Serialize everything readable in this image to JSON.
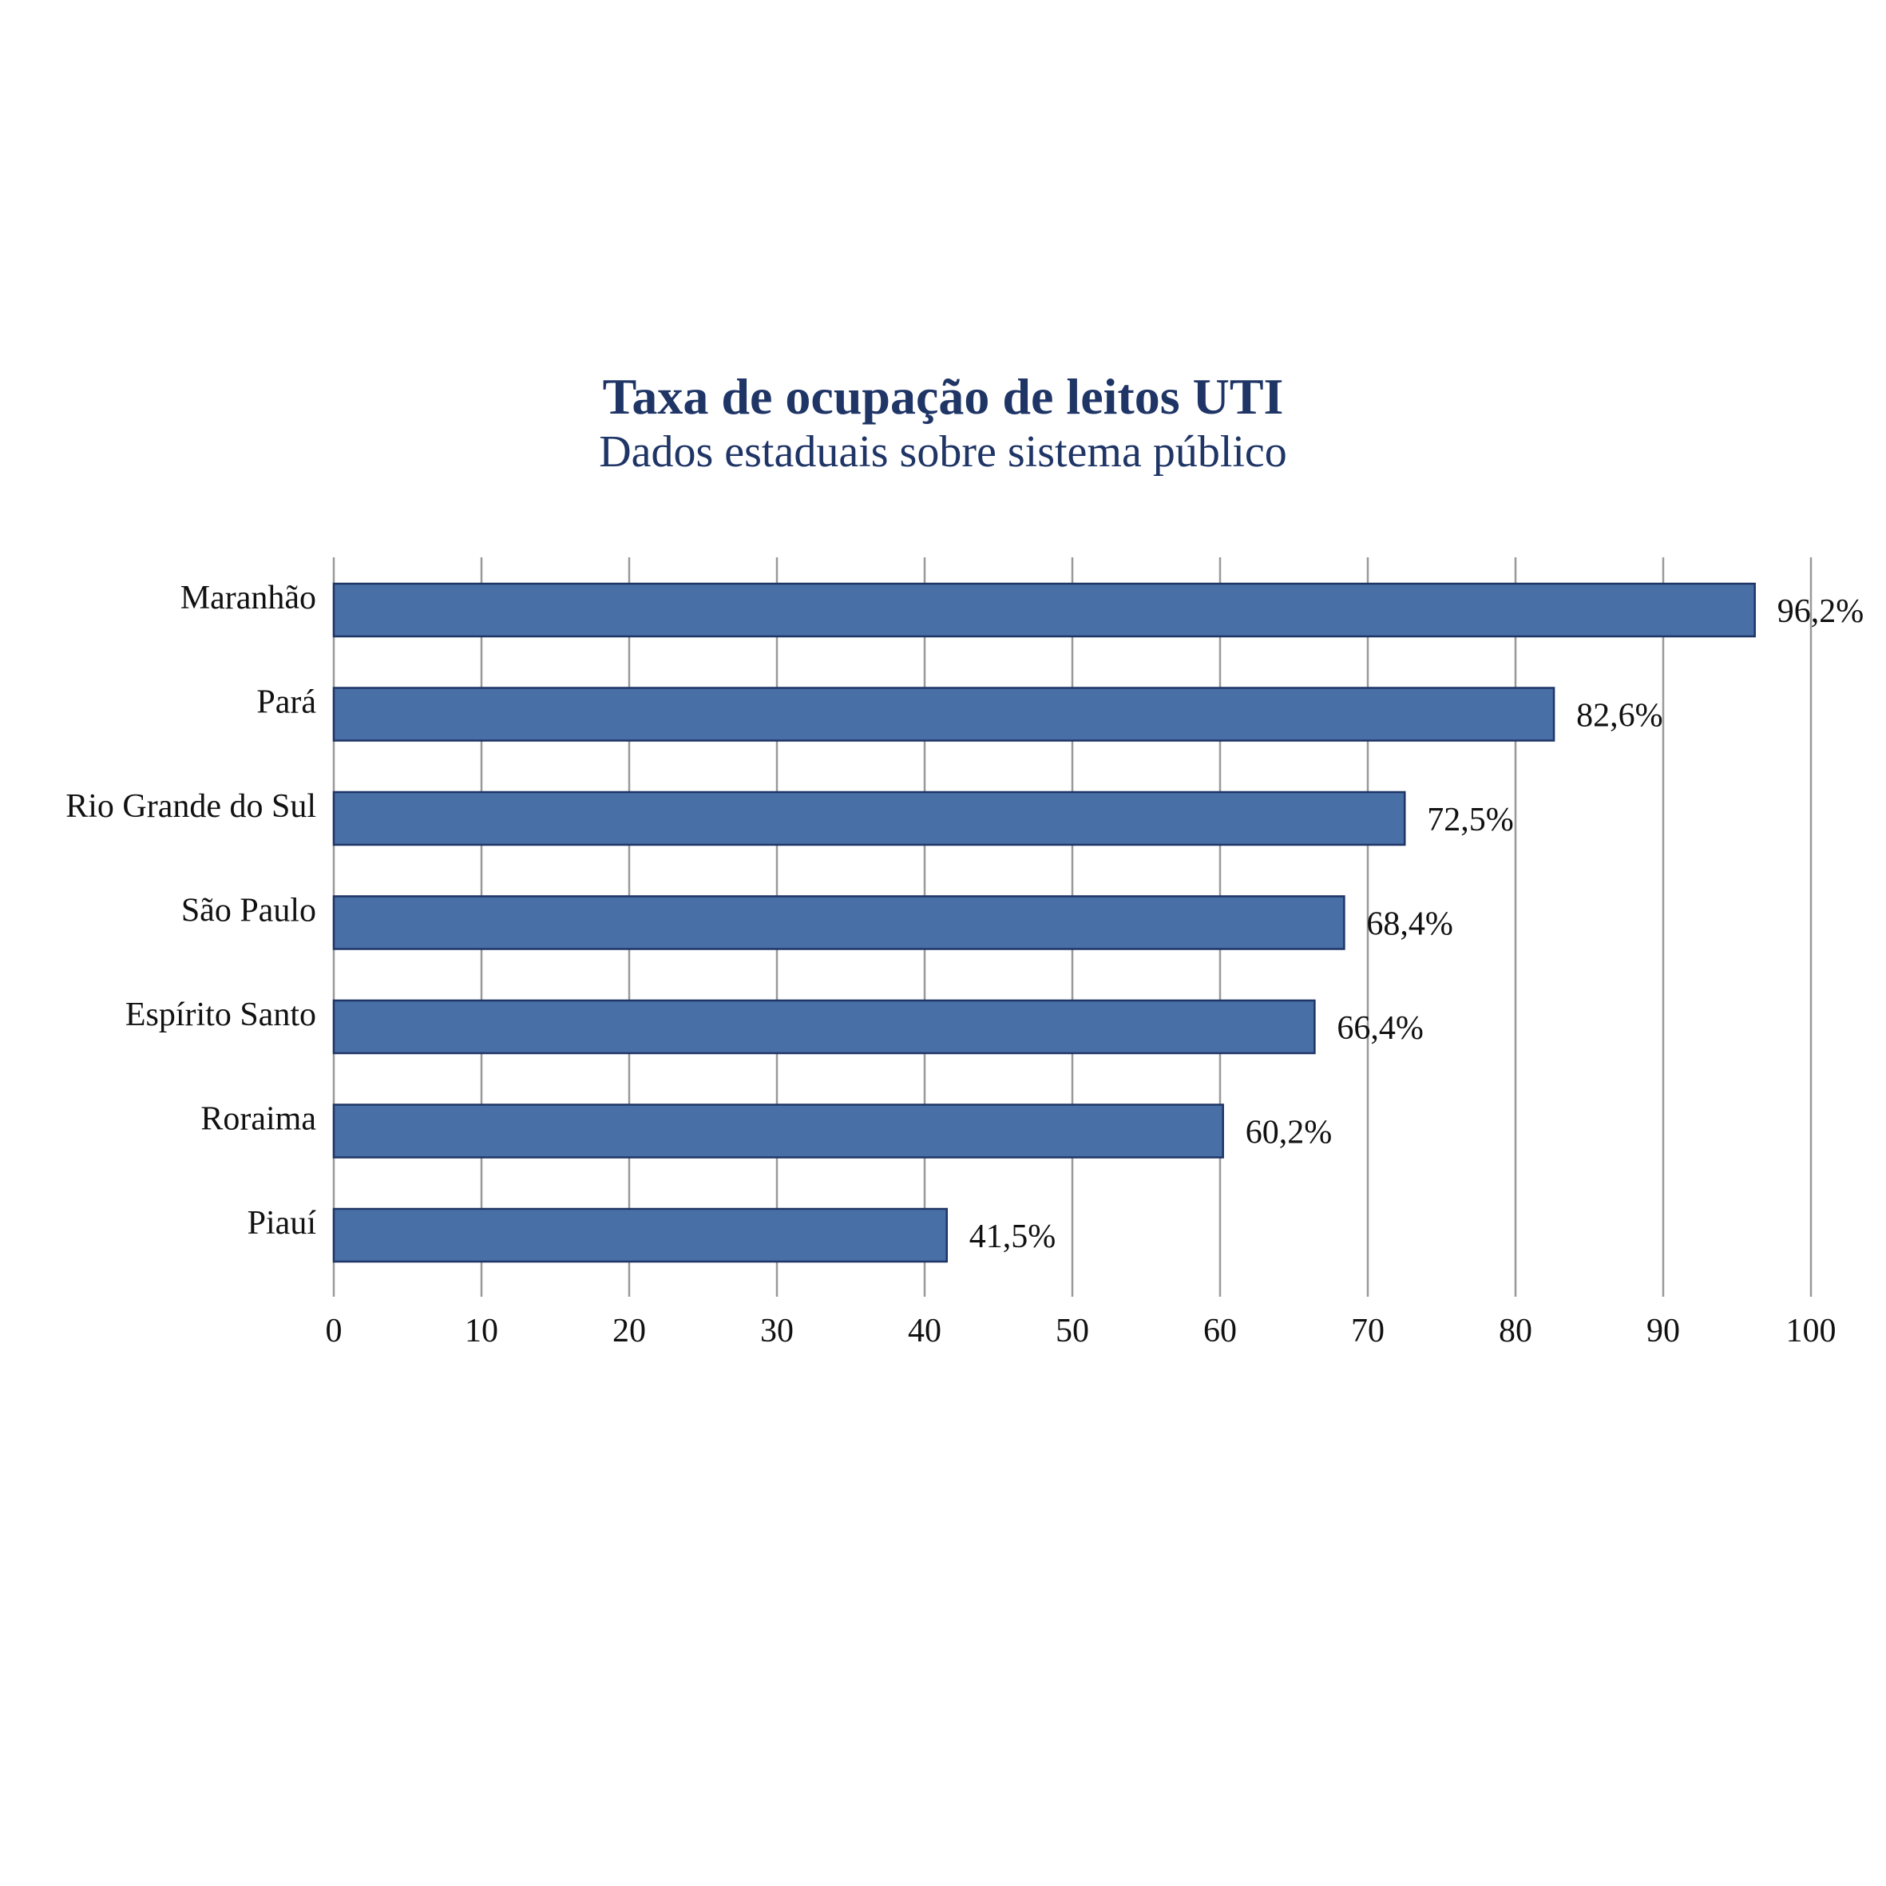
{
  "chart_data": {
    "type": "bar",
    "orientation": "horizontal",
    "title": "Taxa de ocupação de leitos UTI",
    "subtitle": "Dados estaduais sobre sistema público",
    "categories": [
      "Maranhão",
      "Pará",
      "Rio Grande do Sul",
      "São Paulo",
      "Espírito Santo",
      "Roraima",
      "Piauí"
    ],
    "values": [
      96.2,
      82.6,
      72.5,
      68.4,
      66.4,
      60.2,
      41.5
    ],
    "value_labels": [
      "96,2%",
      "82,6%",
      "72,5%",
      "68,4%",
      "66,4%",
      "60,2%",
      "41,5%"
    ],
    "xlim": [
      0,
      100
    ],
    "xticks": [
      0,
      10,
      20,
      30,
      40,
      50,
      60,
      70,
      80,
      90,
      100
    ],
    "grid": "vertical",
    "xlabel": "",
    "ylabel": ""
  },
  "colors": {
    "bar_fill": "#4870a6",
    "bar_stroke": "#1f3566",
    "title": "#1f3566",
    "grid": "#999999"
  }
}
